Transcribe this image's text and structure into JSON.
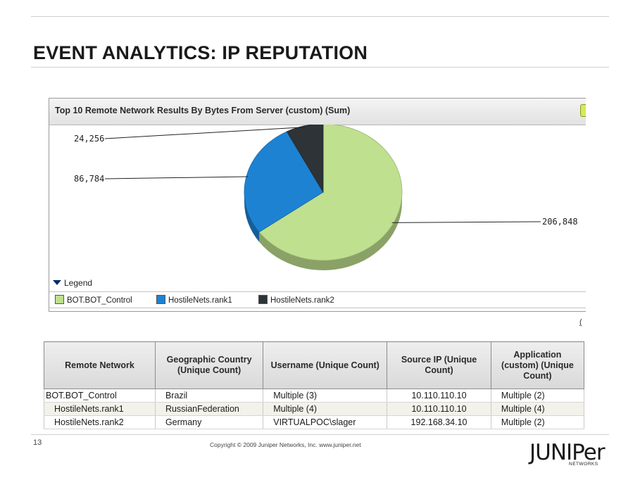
{
  "slide": {
    "title": "EVENT ANALYTICS: IP REPUTATION",
    "page_number": "13",
    "copyright": "Copyright © 2009 Juniper Networks, Inc.     www.juniper.net",
    "logo_text": "JUNIPer",
    "logo_subtext": "NETWORKS"
  },
  "panel": {
    "title": "Top 10 Remote Network Results By Bytes From Server (custom) (Sum)",
    "legend_toggle": "Legend",
    "stub_text": "("
  },
  "chart_data": {
    "type": "pie",
    "title": "Top 10 Remote Network Results By Bytes From Server (custom) (Sum)",
    "slices": [
      {
        "name": "BOT.BOT_Control",
        "value": 206848,
        "label": "206,848",
        "color": "#bfe08f"
      },
      {
        "name": "HostileNets.rank1",
        "value": 86784,
        "label": "86,784",
        "color": "#1e82d2"
      },
      {
        "name": "HostileNets.rank2",
        "value": 24256,
        "label": "24,256",
        "color": "#2d3336"
      }
    ],
    "legend": {
      "position": "bottom",
      "entries": [
        "BOT.BOT_Control",
        "HostileNets.rank1",
        "HostileNets.rank2"
      ]
    }
  },
  "table": {
    "headers": [
      "Remote Network",
      "Geographic Country (Unique Count)",
      "Username (Unique Count)",
      "Source IP (Unique Count)",
      "Application (custom) (Unique Count)"
    ],
    "rows": [
      [
        "BOT.BOT_Control",
        "Brazil",
        "Multiple (3)",
        "10.110.110.10",
        "Multiple (2)"
      ],
      [
        "HostileNets.rank1",
        "RussianFederation",
        "Multiple (4)",
        "10.110.110.10",
        "Multiple (4)"
      ],
      [
        "HostileNets.rank2",
        "Germany",
        "VIRTUALPOC\\slager",
        "192.168.34.10",
        "Multiple (2)"
      ]
    ]
  }
}
